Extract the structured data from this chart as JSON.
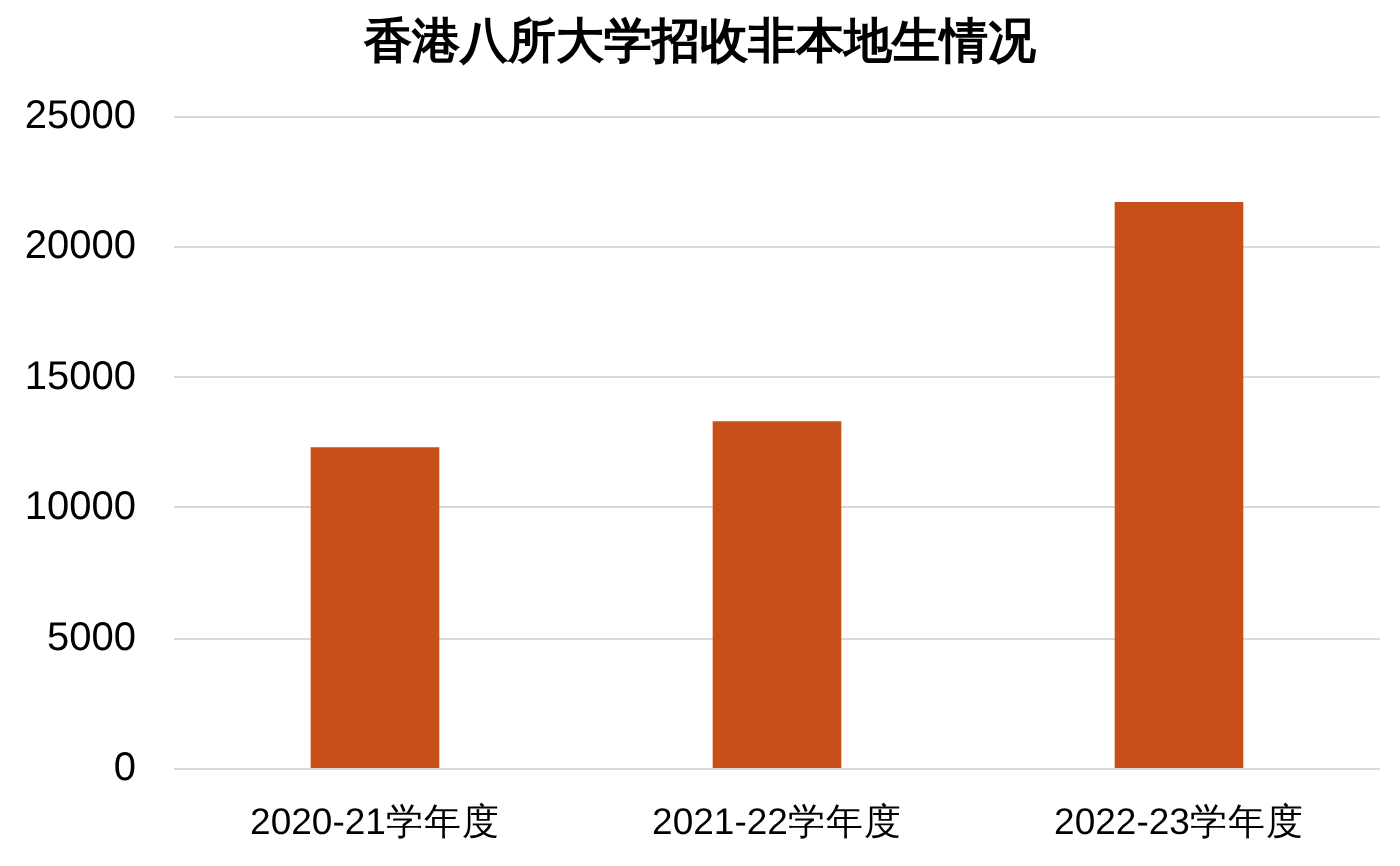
{
  "chart_data": {
    "type": "bar",
    "title": "香港八所大学招收非本地生情况",
    "categories": [
      "2020-21学年度",
      "2021-22学年度",
      "2022-23学年度"
    ],
    "values": [
      12300,
      13300,
      21700
    ],
    "color": "#c94f19",
    "ylim": [
      0,
      25000
    ],
    "yticks": [
      0,
      5000,
      10000,
      15000,
      20000,
      25000
    ],
    "grid": "y"
  }
}
